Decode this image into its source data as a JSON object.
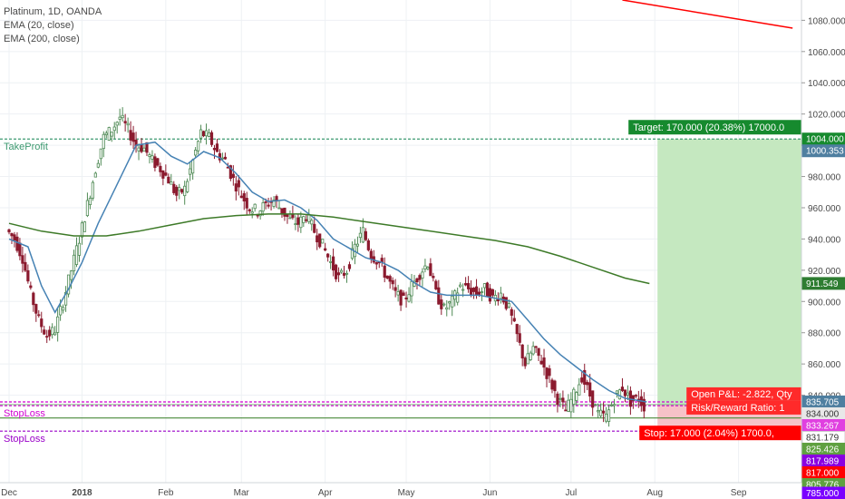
{
  "chart_data": {
    "type": "candlestick",
    "title": "Platinum, 1D, OANDA",
    "indicators": [
      "EMA (20, close)",
      "EMA (200, close)"
    ],
    "y_axis": {
      "range": [
        784,
        1093
      ],
      "ticks": [
        1080,
        1060,
        1040,
        1020,
        1000,
        980,
        960,
        940,
        920,
        900,
        880,
        860,
        840
      ],
      "tick_labels": [
        "1080.000",
        "1060.000",
        "1040.000",
        "1020.000",
        "1000.000",
        "980.000",
        "960.000",
        "940.000",
        "920.000",
        "900.000",
        "880.000",
        "860.000",
        "840.000"
      ]
    },
    "x_axis": {
      "ticks": [
        {
          "label": "Dec",
          "day": 0
        },
        {
          "label": "2018",
          "day": 27
        },
        {
          "label": "Feb",
          "day": 58
        },
        {
          "label": "Mar",
          "day": 86
        },
        {
          "label": "Apr",
          "day": 117
        },
        {
          "label": "May",
          "day": 147
        },
        {
          "label": "Jun",
          "day": 178
        },
        {
          "label": "Jul",
          "day": 208
        },
        {
          "label": "Aug",
          "day": 239
        },
        {
          "label": "Sep",
          "day": 270
        }
      ]
    },
    "levels": [
      {
        "name": "TakeProfit",
        "value": 1004.0,
        "color": "#3d9970",
        "style": "dotted",
        "label": "TakeProfit"
      },
      {
        "name": "entry",
        "value": 834.0,
        "color": "#8fbc8f",
        "style": "solid"
      },
      {
        "name": "support",
        "value": 825.426,
        "color": "#4a8a3a",
        "style": "solid"
      },
      {
        "name": "StopLoss_1",
        "value": 833.267,
        "color": "#d000d0",
        "style": "dotted",
        "label": "StopLoss"
      },
      {
        "name": "StopLoss_1b",
        "value": 835.705,
        "color": "#d000d0",
        "style": "dotted"
      },
      {
        "name": "StopLoss_2",
        "value": 817.0,
        "color": "#9a00c8",
        "style": "dotted",
        "label": "StopLoss"
      }
    ],
    "price_labels": [
      {
        "value": 1004.0,
        "text": "1004.000",
        "bg": "#168a2e",
        "fg": "#ffffff"
      },
      {
        "value": 1000.353,
        "text": "1000.353",
        "bg": "#4f7fa0",
        "fg": "#ffffff"
      },
      {
        "value": 911.549,
        "text": "911.549",
        "bg": "#2e7d32",
        "fg": "#ffffff"
      },
      {
        "value": 835.705,
        "text": "835.705",
        "bg": "#4f7fa0",
        "fg": "#ffffff"
      },
      {
        "value": 834.0,
        "text": "834.000",
        "bg": "#e8e8e8",
        "fg": "#333333"
      },
      {
        "value": 833.267,
        "text": "833.267",
        "bg": "#e040e0",
        "fg": "#ffffff"
      },
      {
        "value": 831.179,
        "text": "831.179",
        "bg": "#ffffff",
        "fg": "#333333"
      },
      {
        "value": 825.426,
        "text": "825.426",
        "bg": "#5fa040",
        "fg": "#ffffff"
      },
      {
        "value": 817.989,
        "text": "817.989",
        "bg": "#8a00e0",
        "fg": "#ffffff"
      },
      {
        "value": 817.0,
        "text": "817.000",
        "bg": "#ff0000",
        "fg": "#ffffff"
      },
      {
        "value": 805.776,
        "text": "805.776",
        "bg": "#5fa040",
        "fg": "#ffffff"
      },
      {
        "value": 785.0,
        "text": "785.000",
        "bg": "#7a00ff",
        "fg": "#ffffff"
      }
    ],
    "position": {
      "start_day": 240,
      "end_day": 304,
      "entry": 834.0,
      "target": 1004.0,
      "stop": 817.0,
      "target_label": "Target: 170.000 (20.38%) 17000.0",
      "stop_label": "Stop: 17.000 (2.04%) 1700.0,",
      "pnl_label": "Open P&L: -2.822, Qty",
      "rr_label": "Risk/Reward Ratio: 1"
    },
    "trendline": {
      "from": {
        "day": 227,
        "value": 1093
      },
      "to": {
        "day": 290,
        "value": 1075
      },
      "color": "#ff0000"
    },
    "series": [
      {
        "name": "EMA (20, close)",
        "color": "#4682b4",
        "points": [
          [
            0,
            940
          ],
          [
            7,
            935
          ],
          [
            12,
            910
          ],
          [
            17,
            893
          ],
          [
            22,
            908
          ],
          [
            27,
            925
          ],
          [
            33,
            950
          ],
          [
            40,
            975
          ],
          [
            47,
            1000
          ],
          [
            54,
            1002
          ],
          [
            60,
            993
          ],
          [
            66,
            988
          ],
          [
            72,
            996
          ],
          [
            78,
            992
          ],
          [
            84,
            982
          ],
          [
            90,
            970
          ],
          [
            96,
            964
          ],
          [
            102,
            965
          ],
          [
            108,
            960
          ],
          [
            114,
            952
          ],
          [
            120,
            940
          ],
          [
            126,
            934
          ],
          [
            132,
            928
          ],
          [
            138,
            925
          ],
          [
            144,
            920
          ],
          [
            150,
            912
          ],
          [
            156,
            906
          ],
          [
            162,
            904
          ],
          [
            168,
            904
          ],
          [
            174,
            904
          ],
          [
            180,
            902
          ],
          [
            186,
            900
          ],
          [
            192,
            888
          ],
          [
            198,
            876
          ],
          [
            204,
            866
          ],
          [
            210,
            858
          ],
          [
            216,
            850
          ],
          [
            222,
            843
          ],
          [
            228,
            838
          ],
          [
            236,
            835.7
          ]
        ]
      },
      {
        "name": "EMA (200, close)",
        "color": "#3d7a28",
        "points": [
          [
            0,
            950
          ],
          [
            12,
            945
          ],
          [
            24,
            942
          ],
          [
            36,
            942
          ],
          [
            48,
            945
          ],
          [
            60,
            949
          ],
          [
            72,
            953
          ],
          [
            84,
            955
          ],
          [
            96,
            956
          ],
          [
            108,
            956
          ],
          [
            120,
            954
          ],
          [
            132,
            951
          ],
          [
            144,
            948
          ],
          [
            156,
            945
          ],
          [
            168,
            942
          ],
          [
            180,
            939
          ],
          [
            192,
            935
          ],
          [
            204,
            929
          ],
          [
            216,
            922
          ],
          [
            228,
            915
          ],
          [
            237,
            911.5
          ]
        ]
      }
    ],
    "candles_close_path": [
      [
        0,
        946
      ],
      [
        3,
        940
      ],
      [
        6,
        928
      ],
      [
        9,
        905
      ],
      [
        12,
        888
      ],
      [
        15,
        878
      ],
      [
        18,
        882
      ],
      [
        21,
        900
      ],
      [
        24,
        920
      ],
      [
        27,
        940
      ],
      [
        30,
        962
      ],
      [
        33,
        985
      ],
      [
        36,
        1005
      ],
      [
        39,
        1010
      ],
      [
        42,
        1018
      ],
      [
        45,
        1010
      ],
      [
        48,
        1000
      ],
      [
        51,
        998
      ],
      [
        54,
        990
      ],
      [
        57,
        985
      ],
      [
        60,
        978
      ],
      [
        63,
        968
      ],
      [
        66,
        972
      ],
      [
        69,
        990
      ],
      [
        72,
        1008
      ],
      [
        75,
        1005
      ],
      [
        78,
        995
      ],
      [
        81,
        990
      ],
      [
        84,
        978
      ],
      [
        87,
        968
      ],
      [
        90,
        960
      ],
      [
        93,
        958
      ],
      [
        96,
        962
      ],
      [
        99,
        965
      ],
      [
        102,
        958
      ],
      [
        105,
        952
      ],
      [
        108,
        950
      ],
      [
        111,
        955
      ],
      [
        114,
        945
      ],
      [
        117,
        936
      ],
      [
        120,
        925
      ],
      [
        123,
        915
      ],
      [
        126,
        920
      ],
      [
        129,
        935
      ],
      [
        132,
        945
      ],
      [
        135,
        930
      ],
      [
        138,
        925
      ],
      [
        141,
        915
      ],
      [
        144,
        905
      ],
      [
        147,
        900
      ],
      [
        150,
        910
      ],
      [
        153,
        918
      ],
      [
        156,
        925
      ],
      [
        159,
        905
      ],
      [
        162,
        895
      ],
      [
        165,
        900
      ],
      [
        168,
        910
      ],
      [
        171,
        908
      ],
      [
        174,
        905
      ],
      [
        177,
        908
      ],
      [
        180,
        902
      ],
      [
        183,
        905
      ],
      [
        186,
        895
      ],
      [
        189,
        878
      ],
      [
        192,
        860
      ],
      [
        195,
        870
      ],
      [
        198,
        862
      ],
      [
        201,
        850
      ],
      [
        204,
        838
      ],
      [
        207,
        830
      ],
      [
        210,
        840
      ],
      [
        213,
        852
      ],
      [
        216,
        840
      ],
      [
        219,
        828
      ],
      [
        222,
        826
      ],
      [
        225,
        838
      ],
      [
        228,
        845
      ],
      [
        231,
        836
      ],
      [
        234,
        838
      ],
      [
        236,
        833
      ]
    ]
  }
}
